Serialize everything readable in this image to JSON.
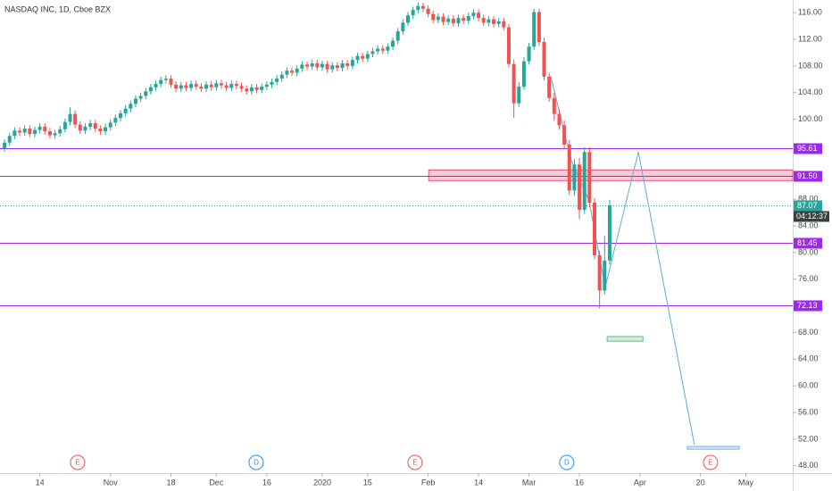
{
  "chart_data": {
    "type": "candlestick",
    "title": "NASDAQ INC, 1D, Cboe BZX",
    "up_color": "#26a69a",
    "down_color": "#ef5350",
    "xlim": [
      -0.9,
      156.3
    ],
    "ylim": [
      46.9,
      117.9
    ],
    "xticks": [
      {
        "value": 7,
        "label": "14"
      },
      {
        "value": 21,
        "label": "Nov"
      },
      {
        "value": 33,
        "label": "18"
      },
      {
        "value": 42,
        "label": "Dec"
      },
      {
        "value": 52,
        "label": "16"
      },
      {
        "value": 63,
        "label": "2020"
      },
      {
        "value": 72,
        "label": "15"
      },
      {
        "value": 84,
        "label": "Feb"
      },
      {
        "value": 94,
        "label": "14"
      },
      {
        "value": 104,
        "label": "Mar"
      },
      {
        "value": 114,
        "label": "16"
      },
      {
        "value": 126,
        "label": "Apr"
      },
      {
        "value": 138,
        "label": "20"
      },
      {
        "value": 147,
        "label": "May"
      }
    ],
    "yticks": [
      {
        "value": 116,
        "label": "116.00"
      },
      {
        "value": 112,
        "label": "112.00"
      },
      {
        "value": 108,
        "label": "108.00"
      },
      {
        "value": 104,
        "label": "104.00"
      },
      {
        "value": 100,
        "label": "100.00"
      },
      {
        "value": 88,
        "label": "88.00"
      },
      {
        "value": 84,
        "label": "84.00"
      },
      {
        "value": 80,
        "label": "80.00"
      },
      {
        "value": 76,
        "label": "76.00"
      },
      {
        "value": 68,
        "label": "68.00"
      },
      {
        "value": 64,
        "label": "64.00"
      },
      {
        "value": 60,
        "label": "60.00"
      },
      {
        "value": 56,
        "label": "56.00"
      },
      {
        "value": 52,
        "label": "52.00"
      },
      {
        "value": 48,
        "label": "48.00"
      }
    ],
    "ohlc": [
      [
        95.6,
        97.0,
        95.1,
        96.5
      ],
      [
        96.5,
        98.0,
        96.0,
        97.5
      ],
      [
        97.5,
        98.8,
        97.0,
        98.3
      ],
      [
        98.3,
        98.8,
        97.5,
        98.0
      ],
      [
        98.0,
        99.1,
        97.5,
        98.6
      ],
      [
        98.6,
        99.1,
        97.3,
        97.8
      ],
      [
        97.8,
        98.9,
        97.3,
        98.4
      ],
      [
        98.4,
        99.4,
        97.9,
        98.9
      ],
      [
        98.9,
        99.4,
        97.7,
        98.2
      ],
      [
        98.2,
        98.7,
        97.1,
        97.6
      ],
      [
        97.6,
        98.4,
        97.1,
        97.9
      ],
      [
        97.9,
        99.0,
        97.4,
        98.5
      ],
      [
        98.5,
        100.1,
        98.0,
        99.6
      ],
      [
        99.6,
        101.8,
        99.1,
        100.8
      ],
      [
        100.8,
        101.3,
        98.7,
        99.2
      ],
      [
        99.2,
        99.7,
        97.8,
        98.3
      ],
      [
        98.3,
        99.4,
        97.8,
        98.9
      ],
      [
        98.9,
        99.9,
        98.4,
        99.4
      ],
      [
        99.4,
        99.9,
        98.1,
        98.6
      ],
      [
        98.6,
        99.1,
        97.7,
        98.2
      ],
      [
        98.2,
        99.3,
        97.7,
        98.8
      ],
      [
        98.8,
        100.0,
        98.3,
        99.5
      ],
      [
        99.5,
        100.7,
        99.0,
        100.2
      ],
      [
        100.2,
        101.4,
        99.7,
        100.9
      ],
      [
        100.9,
        102.1,
        100.4,
        101.6
      ],
      [
        101.6,
        102.8,
        101.1,
        102.3
      ],
      [
        102.3,
        103.6,
        101.8,
        103.1
      ],
      [
        103.1,
        104.0,
        102.6,
        103.5
      ],
      [
        103.5,
        104.7,
        103.0,
        104.2
      ],
      [
        104.2,
        105.3,
        103.7,
        104.8
      ],
      [
        104.8,
        105.8,
        104.3,
        105.3
      ],
      [
        105.3,
        106.4,
        104.8,
        105.9
      ],
      [
        105.9,
        106.6,
        105.4,
        106.1
      ],
      [
        106.1,
        106.6,
        104.7,
        105.2
      ],
      [
        105.2,
        105.7,
        104.1,
        104.6
      ],
      [
        104.6,
        105.6,
        104.1,
        105.1
      ],
      [
        105.1,
        105.6,
        104.2,
        104.7
      ],
      [
        104.7,
        105.8,
        104.2,
        105.3
      ],
      [
        105.3,
        105.8,
        104.4,
        104.9
      ],
      [
        104.9,
        105.4,
        104.1,
        104.6
      ],
      [
        104.6,
        105.7,
        104.1,
        105.2
      ],
      [
        105.2,
        105.7,
        104.3,
        104.8
      ],
      [
        104.8,
        105.9,
        104.3,
        105.4
      ],
      [
        105.4,
        105.9,
        104.6,
        105.1
      ],
      [
        105.1,
        105.6,
        104.2,
        104.7
      ],
      [
        104.7,
        105.8,
        104.2,
        105.3
      ],
      [
        105.3,
        105.8,
        104.5,
        105.0
      ],
      [
        105.0,
        105.5,
        104.1,
        104.6
      ],
      [
        104.6,
        105.1,
        103.7,
        104.2
      ],
      [
        104.2,
        105.3,
        103.7,
        104.8
      ],
      [
        104.8,
        105.3,
        103.9,
        104.4
      ],
      [
        104.4,
        105.4,
        103.9,
        104.9
      ],
      [
        104.9,
        105.7,
        104.4,
        105.2
      ],
      [
        105.2,
        106.1,
        104.7,
        105.6
      ],
      [
        105.6,
        106.6,
        105.1,
        106.1
      ],
      [
        106.1,
        107.2,
        105.6,
        106.7
      ],
      [
        106.7,
        107.8,
        106.2,
        107.3
      ],
      [
        107.3,
        107.8,
        106.5,
        107.0
      ],
      [
        107.0,
        108.1,
        106.5,
        107.6
      ],
      [
        107.6,
        108.7,
        107.1,
        108.2
      ],
      [
        108.2,
        108.7,
        107.4,
        107.9
      ],
      [
        107.9,
        108.9,
        107.4,
        108.4
      ],
      [
        108.4,
        108.9,
        107.3,
        107.8
      ],
      [
        107.8,
        108.8,
        107.3,
        108.3
      ],
      [
        108.3,
        108.8,
        107.0,
        107.5
      ],
      [
        107.5,
        108.6,
        107.0,
        108.1
      ],
      [
        108.1,
        108.6,
        107.2,
        107.7
      ],
      [
        107.7,
        108.9,
        107.2,
        108.4
      ],
      [
        108.4,
        108.9,
        107.5,
        108.0
      ],
      [
        108.0,
        109.4,
        107.5,
        108.9
      ],
      [
        108.9,
        110.0,
        108.4,
        109.5
      ],
      [
        109.5,
        110.0,
        108.6,
        109.1
      ],
      [
        109.1,
        110.3,
        108.6,
        109.8
      ],
      [
        109.8,
        110.7,
        109.3,
        110.2
      ],
      [
        110.2,
        111.1,
        109.7,
        110.6
      ],
      [
        110.6,
        111.1,
        109.8,
        110.3
      ],
      [
        110.3,
        111.4,
        109.8,
        110.9
      ],
      [
        110.9,
        112.3,
        110.4,
        111.8
      ],
      [
        111.8,
        113.7,
        111.3,
        113.2
      ],
      [
        113.2,
        115.0,
        112.7,
        114.5
      ],
      [
        114.5,
        116.1,
        114.0,
        115.6
      ],
      [
        115.6,
        116.9,
        115.1,
        116.4
      ],
      [
        116.4,
        117.5,
        115.9,
        117.0
      ],
      [
        117.0,
        117.5,
        116.1,
        116.6
      ],
      [
        116.6,
        117.1,
        115.3,
        115.8
      ],
      [
        115.8,
        116.3,
        114.4,
        114.9
      ],
      [
        114.9,
        115.9,
        114.4,
        115.4
      ],
      [
        115.4,
        115.9,
        114.1,
        114.6
      ],
      [
        114.6,
        115.6,
        114.1,
        115.1
      ],
      [
        115.1,
        115.6,
        113.9,
        114.4
      ],
      [
        114.4,
        115.7,
        113.9,
        115.2
      ],
      [
        115.2,
        115.7,
        114.3,
        114.8
      ],
      [
        114.8,
        116.0,
        114.3,
        115.5
      ],
      [
        115.5,
        116.5,
        115.0,
        116.0
      ],
      [
        116.0,
        116.5,
        114.7,
        115.2
      ],
      [
        115.2,
        115.7,
        114.0,
        114.5
      ],
      [
        114.5,
        115.5,
        114.0,
        115.0
      ],
      [
        115.0,
        115.5,
        113.8,
        114.3
      ],
      [
        114.3,
        115.2,
        113.8,
        114.7
      ],
      [
        114.7,
        115.2,
        113.3,
        113.8
      ],
      [
        113.8,
        114.3,
        107.8,
        108.3
      ],
      [
        108.3,
        109.0,
        100.2,
        102.4
      ],
      [
        102.4,
        105.6,
        101.9,
        104.9
      ],
      [
        104.9,
        109.3,
        104.4,
        108.7
      ],
      [
        108.7,
        111.5,
        108.2,
        110.9
      ],
      [
        110.9,
        116.6,
        110.4,
        116.1
      ],
      [
        116.1,
        116.6,
        111.0,
        111.6
      ],
      [
        111.6,
        112.2,
        105.9,
        106.4
      ],
      [
        106.4,
        107.0,
        102.6,
        103.2
      ],
      [
        103.2,
        104.0,
        99.8,
        100.8
      ],
      [
        100.8,
        101.5,
        98.5,
        99.1
      ],
      [
        99.1,
        99.8,
        95.6,
        96.2
      ],
      [
        96.2,
        96.9,
        88.6,
        89.3
      ],
      [
        89.3,
        94.0,
        88.5,
        93.2
      ],
      [
        93.2,
        94.2,
        85.0,
        86.4
      ],
      [
        86.4,
        95.8,
        85.8,
        95.1
      ],
      [
        95.1,
        95.8,
        86.8,
        87.5
      ],
      [
        87.5,
        88.2,
        79.0,
        79.6
      ],
      [
        79.6,
        80.3,
        71.6,
        74.3
      ],
      [
        74.3,
        82.5,
        73.7,
        78.8
      ],
      [
        78.8,
        87.9,
        78.2,
        87.07
      ]
    ],
    "levels": [
      95.61,
      {
        "value": 91.5,
        "label": "91.50"
      },
      81.45,
      72.13
    ],
    "level_color": "#9c27f0",
    "last_price": 87.07,
    "last_price_color": "#26a69a",
    "countdown": "04:12:37",
    "zones": [
      {
        "x": [
          84.1,
          156.3
        ],
        "y": [
          90.8,
          92.4
        ],
        "color": "#f8bbd0",
        "stroke": "#ef5370"
      },
      {
        "x": [
          119.5,
          126.6
        ],
        "y": [
          66.7,
          67.4
        ],
        "color": "#c8e6d9",
        "stroke": "#66bb8a"
      },
      {
        "x": [
          135.4,
          145.7
        ],
        "y": [
          50.5,
          50.9
        ],
        "color": "#d6e6f5",
        "stroke": "#7aaedb"
      }
    ],
    "projection": {
      "color": "#5fa8d8",
      "x": [
        108.3,
        112.4,
        115.9,
        119.1,
        125.7,
        136.8
      ],
      "y": [
        106.5,
        93.8,
        87.8,
        74.8,
        95.1,
        51.2
      ]
    },
    "events": [
      {
        "label": "E",
        "x": 14.5,
        "color": "#ef5350"
      },
      {
        "label": "D",
        "x": 49.9,
        "color": "#2196f3"
      },
      {
        "label": "E",
        "x": 81.4,
        "color": "#ef5350"
      },
      {
        "label": "D",
        "x": 111.5,
        "color": "#2196f3"
      },
      {
        "label": "E",
        "x": 140,
        "color": "#ef5350"
      }
    ]
  }
}
